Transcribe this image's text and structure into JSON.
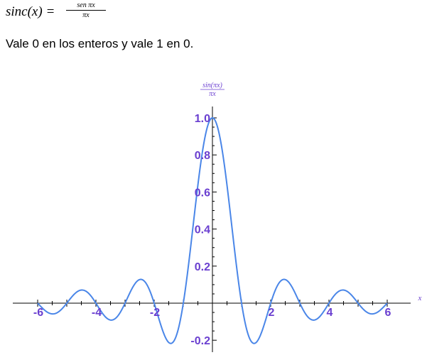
{
  "formula": {
    "lhs": "sinc(x) =",
    "numerator": "sen πx",
    "denominator": "πx"
  },
  "subtitle": "Vale 0 en los enteros y vale 1 en 0.",
  "chart_data": {
    "type": "line",
    "title": "",
    "xlabel": "x",
    "ylabel_numerator": "sin(πx)",
    "ylabel_denominator": "πx",
    "xlim": [
      -6.1,
      6.1
    ],
    "ylim": [
      -0.217,
      1.0
    ],
    "x_ticks": [
      -6,
      -4,
      -2,
      2,
      4,
      6
    ],
    "x_tick_labels": [
      "-6",
      "-4",
      "-2",
      "2",
      "4",
      "6"
    ],
    "y_ticks": [
      -0.2,
      0.2,
      0.4,
      0.6,
      0.8,
      1.0
    ],
    "y_tick_labels": [
      "-0.2",
      "0.2",
      "0.4",
      "0.6",
      "0.8",
      "1.0"
    ],
    "function": "sin(πx)/(πx)",
    "x_range": [
      -6,
      6
    ],
    "grid": false,
    "line_color": "#4a86e8",
    "tick_label_color": "#6a3fd0",
    "axis_label_color": "#6a3fd0",
    "series": [
      {
        "x": [
          -6,
          -5.5,
          -5,
          -4.5,
          -4,
          -3.5,
          -3,
          -2.5,
          -2,
          -1.5,
          -1,
          -0.5,
          0,
          0.5,
          1,
          1.5,
          2,
          2.5,
          3,
          3.5,
          4,
          4.5,
          5,
          5.5,
          6
        ],
        "values": [
          0,
          -0.058,
          0,
          0.071,
          0,
          -0.091,
          0,
          0.127,
          0,
          -0.212,
          0,
          0.637,
          1.0,
          0.637,
          0,
          -0.212,
          0,
          0.127,
          0,
          -0.091,
          0,
          0.071,
          0,
          -0.058,
          0
        ]
      }
    ]
  }
}
